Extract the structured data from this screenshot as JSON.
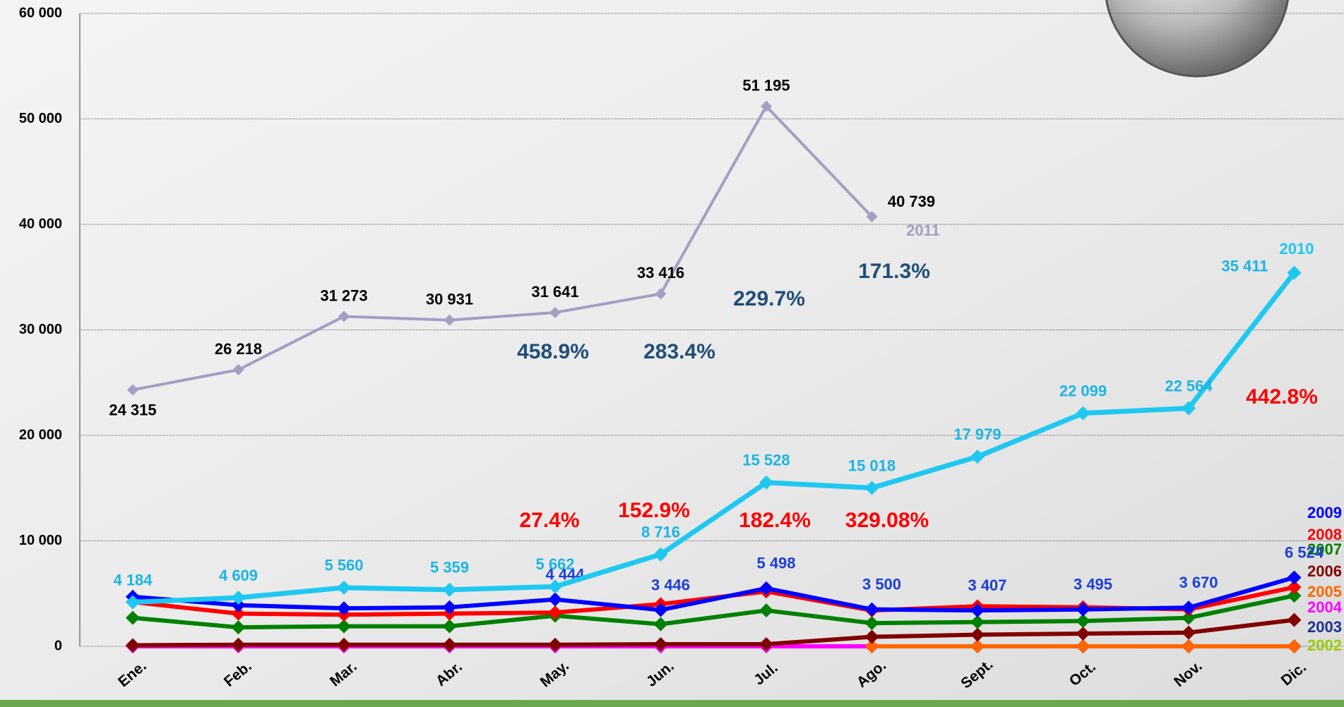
{
  "chart_data": {
    "type": "line",
    "categories": [
      "Ene.",
      "Feb.",
      "Mar.",
      "Abr.",
      "May.",
      "Jun.",
      "Jul.",
      "Ago.",
      "Sept.",
      "Oct.",
      "Nov.",
      "Dic."
    ],
    "ylim": [
      0,
      60000
    ],
    "yticks": [
      {
        "value": 0,
        "label": "0"
      },
      {
        "value": 10000,
        "label": "10 000"
      },
      {
        "value": 20000,
        "label": "20 000"
      },
      {
        "value": 30000,
        "label": "30 000"
      },
      {
        "value": 40000,
        "label": "40 000"
      },
      {
        "value": 50000,
        "label": "50 000"
      },
      {
        "value": 60000,
        "label": "60 000"
      }
    ],
    "grid": true,
    "series": [
      {
        "name": "2011",
        "color": "#a59dc4",
        "label_color": "#000000",
        "values": [
          24315,
          26218,
          31273,
          30931,
          31641,
          33416,
          51195,
          40739,
          null,
          null,
          null,
          null
        ],
        "value_labels": [
          "24 315",
          "26 218",
          "31 273",
          "30 931",
          "31 641",
          "33 416",
          "51 195",
          "40 739",
          null,
          null,
          null,
          null
        ]
      },
      {
        "name": "2010",
        "color": "#1ec8f0",
        "label_color": "#1ab4e6",
        "values": [
          4184,
          4609,
          5560,
          5359,
          5662,
          8716,
          15528,
          15018,
          17979,
          22099,
          22564,
          35411
        ],
        "value_labels": [
          "4 184",
          "4 609",
          "5 560",
          "5 359",
          "5 662",
          "8 716",
          "15 528",
          "15 018",
          "17 979",
          "22 099",
          "22 564",
          "35 411"
        ]
      },
      {
        "name": "2009",
        "color": "#0000ff",
        "label_color": "#1a3fd6",
        "values": [
          4700,
          3900,
          3600,
          3700,
          4444,
          3446,
          5498,
          3500,
          3407,
          3495,
          3670,
          6524
        ],
        "value_labels": [
          null,
          null,
          null,
          null,
          "4 444",
          "3 446",
          "5 498",
          "3 500",
          "3 407",
          "3 495",
          "3 670",
          "6 524"
        ]
      },
      {
        "name": "2008",
        "color": "#ff0000",
        "values": [
          4200,
          3100,
          3000,
          3100,
          3200,
          4000,
          5200,
          3400,
          3800,
          3700,
          3500,
          5600
        ]
      },
      {
        "name": "2007",
        "color": "#008000",
        "values": [
          2700,
          1800,
          1900,
          1900,
          2900,
          2100,
          3400,
          2200,
          2300,
          2400,
          2700,
          4800
        ]
      },
      {
        "name": "2006",
        "color": "#800000",
        "values": [
          100,
          150,
          150,
          150,
          150,
          200,
          200,
          900,
          1100,
          1200,
          1300,
          2500
        ]
      },
      {
        "name": "2005",
        "color": "#ff6600",
        "values": [
          null,
          null,
          null,
          null,
          null,
          null,
          null,
          0,
          0,
          0,
          0,
          0
        ]
      },
      {
        "name": "2004",
        "color": "#ff00ff",
        "values": [
          0,
          0,
          0,
          0,
          0,
          0,
          0,
          0,
          0,
          0,
          0,
          0
        ]
      },
      {
        "name": "2003",
        "color": "#1f2f8f",
        "values": [
          0,
          0,
          0,
          0,
          0,
          0,
          0,
          0,
          0,
          0,
          0,
          0
        ]
      },
      {
        "name": "2002",
        "color": "#99cc00",
        "values": [
          0,
          0,
          0,
          0,
          0,
          0,
          0,
          0,
          0,
          0,
          0,
          0
        ]
      }
    ],
    "annotations": [
      {
        "text": "458.9%",
        "color": "#1f4e79"
      },
      {
        "text": "283.4%",
        "color": "#1f4e79"
      },
      {
        "text": "229.7%",
        "color": "#1f4e79"
      },
      {
        "text": "171.3%",
        "color": "#1f4e79"
      },
      {
        "text": "27.4%",
        "color": "#ff0000"
      },
      {
        "text": "152.9%",
        "color": "#ff0000"
      },
      {
        "text": "182.4%",
        "color": "#ff0000"
      },
      {
        "text": "329.08%",
        "color": "#ff0000"
      },
      {
        "text": "442.8%",
        "color": "#ff0000"
      }
    ]
  }
}
